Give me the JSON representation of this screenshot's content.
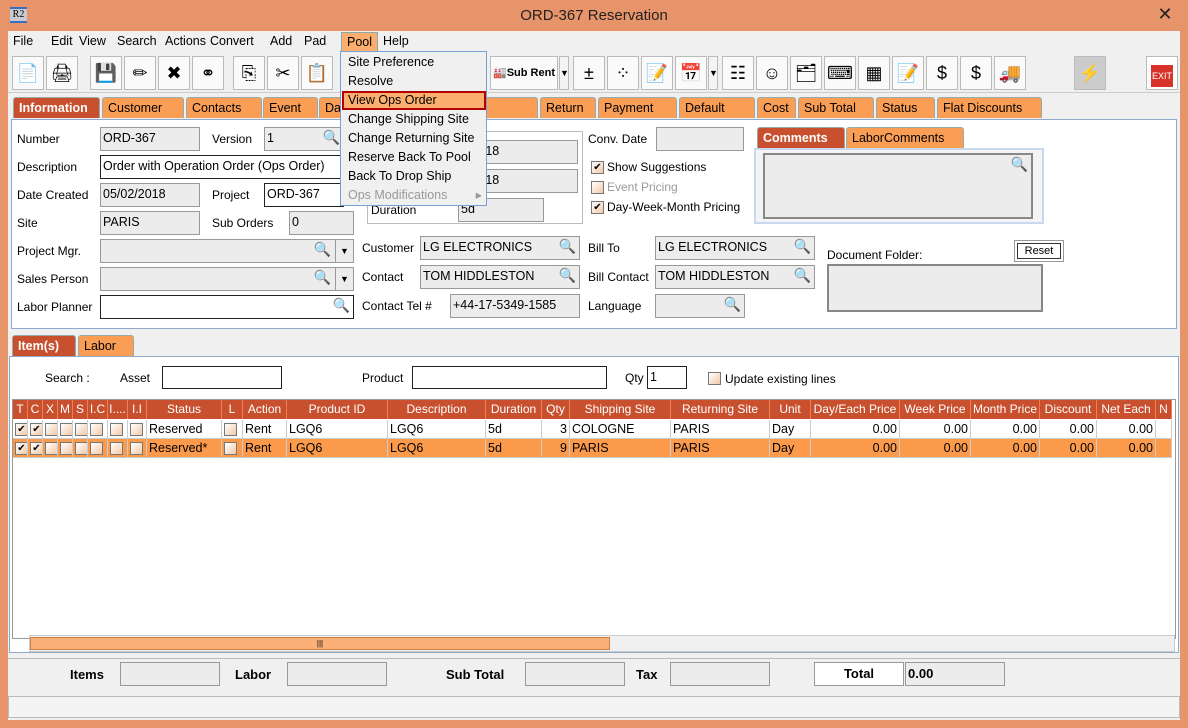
{
  "window": {
    "title": "ORD-367 Reservation",
    "icon_text": "R2",
    "close": "✕"
  },
  "menubar": [
    "File",
    "Edit",
    "View",
    "Search",
    "Actions",
    "Convert",
    "Add",
    "Pad",
    "Pool",
    "Help"
  ],
  "pool_menu": [
    {
      "label": "Site Preference",
      "state": "normal"
    },
    {
      "label": "Resolve",
      "state": "normal"
    },
    {
      "label": "View Ops Order",
      "state": "highlighted"
    },
    {
      "label": "Change Shipping Site",
      "state": "normal"
    },
    {
      "label": "Change Returning Site",
      "state": "normal"
    },
    {
      "label": "Reserve Back To Pool",
      "state": "normal"
    },
    {
      "label": "Back To Drop Ship",
      "state": "normal"
    },
    {
      "label": "Ops Modifications",
      "state": "disabled",
      "submenu": "▸"
    }
  ],
  "toolbar": {
    "sub_rent": "Sub Rent",
    "exit": "EXIT",
    "icons": [
      "new-document",
      "print",
      "save",
      "edit-pencil",
      "delete",
      "binoculars",
      "copy-document",
      "cut",
      "paste",
      "sub-rent",
      "add-remove",
      "balls",
      "notepad-edit",
      "calendar",
      "hierarchy",
      "smiley",
      "folder-clock",
      "keyboard-key",
      "boxes",
      "document-edit",
      "money-arrow",
      "money-note",
      "truck",
      "lightning",
      "exit"
    ]
  },
  "tabs": [
    "Information",
    "Customer",
    "Contacts",
    "Event",
    "Dat",
    "pping",
    "Return",
    "Payment",
    "Default",
    "Cost",
    "Sub Total",
    "Status",
    "Flat Discounts"
  ],
  "form": {
    "number_label": "Number",
    "number": "ORD-367",
    "version_label": "Version",
    "version": "1",
    "description_label": "Description",
    "description": "Order with Operation Order (Ops Order)",
    "date_created_label": "Date Created",
    "date_created": "05/02/2018",
    "project_label": "Project",
    "project": "ORD-367",
    "site_label": "Site",
    "site": "PARIS",
    "sub_orders_label": "Sub Orders",
    "sub_orders": "0",
    "project_mgr_label": "Project Mgr.",
    "sales_person_label": "Sales Person",
    "labor_planner_label": "Labor Planner",
    "date1": "6/2018",
    "date2": "0/2018",
    "duration_label": "Duration",
    "duration": "5d",
    "customer_label": "Customer",
    "customer": "LG ELECTRONICS",
    "contact_label": "Contact",
    "contact": "TOM HIDDLESTON",
    "contact_tel_label": "Contact Tel #",
    "contact_tel": "+44-17-5349-1585",
    "conv_date_label": "Conv. Date",
    "show_suggestions": "Show Suggestions",
    "event_pricing": "Event Pricing",
    "dwm_pricing": "Day-Week-Month Pricing",
    "bill_to_label": "Bill To",
    "bill_to": "LG ELECTRONICS",
    "bill_contact_label": "Bill Contact",
    "bill_contact": "TOM HIDDLESTON",
    "language_label": "Language",
    "comments_tab": "Comments",
    "labor_comments_tab": "LaborComments",
    "document_folder_label": "Document Folder:",
    "reset": "Reset"
  },
  "items_tabs": [
    "Item(s)",
    "Labor"
  ],
  "search": {
    "label": "Search :",
    "asset_label": "Asset",
    "product_label": "Product",
    "qty_label": "Qty",
    "qty": "1",
    "update_existing": "Update existing lines"
  },
  "table": {
    "columns": [
      "T",
      "C",
      "X",
      "M",
      "S",
      "I.C",
      "I....",
      "I.I",
      "Status",
      "L",
      "Action",
      "Product ID",
      "Description",
      "Duration",
      "Qty",
      "Shipping Site",
      "Returning Site",
      "Unit",
      "Day/Each Price",
      "Week Price",
      "Month Price",
      "Discount",
      "Net Each",
      "N"
    ],
    "rows": [
      {
        "selected": false,
        "checks": [
          true,
          true,
          false,
          false,
          false,
          false,
          false,
          false
        ],
        "status": "Reserved",
        "l": false,
        "action": "Rent",
        "product_id": "LGQ6",
        "description": "LGQ6",
        "duration": "5d",
        "qty": "3",
        "shipping_site": "COLOGNE",
        "returning_site": "PARIS",
        "unit": "Day",
        "day_price": "0.00",
        "week_price": "0.00",
        "month_price": "0.00",
        "discount": "0.00",
        "net_each": "0.00"
      },
      {
        "selected": true,
        "checks": [
          true,
          true,
          false,
          false,
          false,
          false,
          false,
          false
        ],
        "status": "Reserved*",
        "l": false,
        "action": "Rent",
        "product_id": "LGQ6",
        "description": "LGQ6",
        "duration": "5d",
        "qty": "9",
        "shipping_site": "PARIS",
        "returning_site": "PARIS",
        "unit": "Day",
        "day_price": "0.00",
        "week_price": "0.00",
        "month_price": "0.00",
        "discount": "0.00",
        "net_each": "0.00"
      }
    ]
  },
  "totals": {
    "items_label": "Items",
    "labor_label": "Labor",
    "sub_total_label": "Sub Total",
    "tax_label": "Tax",
    "total_label": "Total",
    "total": "0.00"
  }
}
